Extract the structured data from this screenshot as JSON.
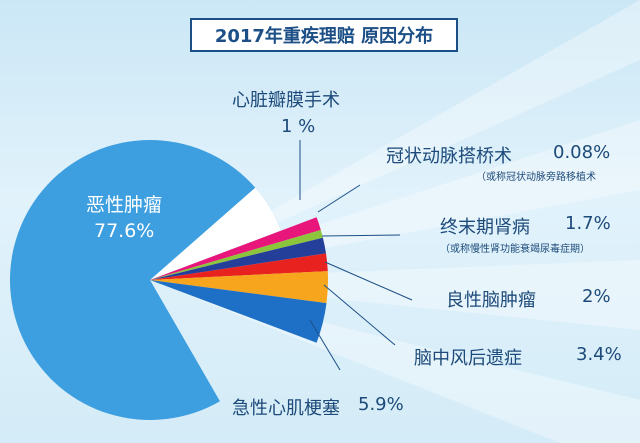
{
  "title": "2017年重疾理赔 原因分布",
  "chart_data": {
    "type": "pie",
    "title": "2017年重疾理赔 原因分布",
    "unit": "%",
    "slices": [
      {
        "label": "恶性肿瘤",
        "value": 77.6,
        "value_text": "77.6%",
        "color": "#3d9ee0"
      },
      {
        "label": "心脏瓣膜手术",
        "value": 1,
        "value_text": "1 %",
        "color": "#e8157b"
      },
      {
        "label": "冠状动脉搭桥术",
        "value": 0.08,
        "value_text": "0.08%",
        "note": "（或称冠状动脉旁路移植术",
        "color": "#8cc43c"
      },
      {
        "label": "终末期肾病",
        "value": 1.7,
        "value_text": "1.7%",
        "note": "（或称慢性肾功能衰竭尿毒症期）",
        "color": "#233f9a"
      },
      {
        "label": "良性脑肿瘤",
        "value": 2,
        "value_text": "2%",
        "color": "#e8231f"
      },
      {
        "label": "脑中风后遗症",
        "value": 3.4,
        "value_text": "3.4%",
        "color": "#f7a51c"
      },
      {
        "label": "急性心肌梗塞",
        "value": 5.9,
        "value_text": "5.9%",
        "color": "#1e6fc6"
      },
      {
        "label": "",
        "value": 8.32,
        "value_text": "",
        "color": "#ffffff"
      }
    ]
  }
}
